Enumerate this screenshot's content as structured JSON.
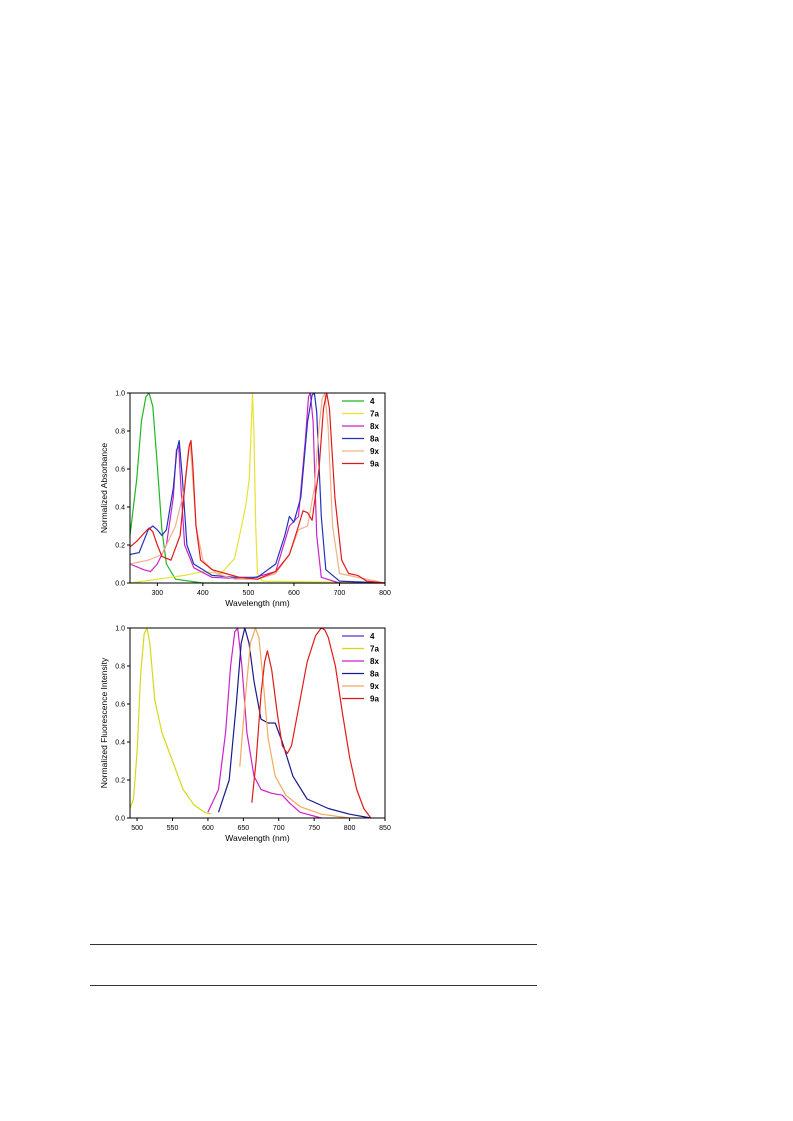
{
  "chart_data": [
    {
      "type": "line",
      "xlabel": "Wavelength (nm)",
      "ylabel": "Normalized Absorbance",
      "xlim": [
        240,
        800
      ],
      "ylim": [
        0,
        1.0
      ],
      "xticks": [
        300,
        400,
        500,
        600,
        700,
        800
      ],
      "yticks": [
        0.0,
        0.2,
        0.4,
        0.6,
        0.8,
        1.0
      ],
      "legend_position": "top-right",
      "series": [
        {
          "name": "4",
          "color": "#22b722",
          "x": [
            240,
            255,
            265,
            275,
            282,
            290,
            300,
            310,
            320,
            340,
            400,
            800
          ],
          "y": [
            0.25,
            0.55,
            0.85,
            0.98,
            1.0,
            0.93,
            0.62,
            0.28,
            0.1,
            0.02,
            0.0,
            0.0
          ]
        },
        {
          "name": "7a",
          "color": "#e8e233",
          "x": [
            240,
            300,
            360,
            400,
            440,
            470,
            485,
            495,
            502,
            506,
            509,
            512,
            516,
            520,
            530,
            800
          ],
          "y": [
            0.0,
            0.02,
            0.04,
            0.06,
            0.05,
            0.13,
            0.3,
            0.42,
            0.55,
            0.8,
            1.0,
            0.8,
            0.3,
            0.05,
            0.01,
            0.0
          ]
        },
        {
          "name": "8x",
          "color": "#cc22cc",
          "x": [
            240,
            270,
            285,
            300,
            320,
            335,
            342,
            347,
            352,
            360,
            380,
            420,
            500,
            560,
            590,
            610,
            625,
            632,
            636,
            642,
            650,
            660,
            700,
            800
          ],
          "y": [
            0.1,
            0.07,
            0.06,
            0.1,
            0.2,
            0.45,
            0.7,
            0.72,
            0.5,
            0.2,
            0.08,
            0.03,
            0.02,
            0.06,
            0.3,
            0.35,
            0.75,
            0.98,
            1.0,
            0.85,
            0.25,
            0.03,
            0.0,
            0.0
          ]
        },
        {
          "name": "8a",
          "color": "#2233bb",
          "x": [
            240,
            260,
            280,
            290,
            300,
            310,
            320,
            335,
            343,
            348,
            355,
            365,
            380,
            420,
            470,
            520,
            560,
            580,
            590,
            600,
            615,
            630,
            640,
            645,
            650,
            660,
            670,
            700,
            800
          ],
          "y": [
            0.15,
            0.16,
            0.28,
            0.3,
            0.28,
            0.25,
            0.28,
            0.5,
            0.7,
            0.75,
            0.55,
            0.2,
            0.1,
            0.04,
            0.03,
            0.03,
            0.1,
            0.25,
            0.35,
            0.32,
            0.45,
            0.85,
            0.99,
            1.0,
            0.9,
            0.35,
            0.07,
            0.01,
            0.0
          ]
        },
        {
          "name": "9x",
          "color": "#f2b08a",
          "x": [
            240,
            280,
            310,
            340,
            360,
            368,
            372,
            378,
            385,
            400,
            430,
            470,
            520,
            560,
            590,
            610,
            630,
            645,
            655,
            662,
            668,
            675,
            685,
            700,
            800
          ],
          "y": [
            0.1,
            0.12,
            0.15,
            0.3,
            0.5,
            0.7,
            0.74,
            0.55,
            0.3,
            0.12,
            0.05,
            0.02,
            0.02,
            0.05,
            0.15,
            0.28,
            0.3,
            0.5,
            0.82,
            0.97,
            1.0,
            0.82,
            0.3,
            0.05,
            0.0
          ]
        },
        {
          "name": "9a",
          "color": "#e01a1a",
          "x": [
            240,
            255,
            270,
            282,
            290,
            300,
            310,
            330,
            350,
            362,
            370,
            374,
            378,
            385,
            395,
            420,
            450,
            480,
            520,
            560,
            590,
            610,
            620,
            630,
            640,
            655,
            665,
            672,
            678,
            690,
            705,
            720,
            740,
            760,
            800
          ],
          "y": [
            0.19,
            0.22,
            0.26,
            0.29,
            0.27,
            0.2,
            0.14,
            0.12,
            0.25,
            0.55,
            0.72,
            0.75,
            0.62,
            0.3,
            0.12,
            0.07,
            0.05,
            0.03,
            0.02,
            0.06,
            0.15,
            0.3,
            0.38,
            0.37,
            0.33,
            0.6,
            0.92,
            1.0,
            0.92,
            0.45,
            0.12,
            0.05,
            0.04,
            0.01,
            0.0
          ]
        }
      ]
    },
    {
      "type": "line",
      "xlabel": "Wavelength (nm)",
      "ylabel": "Normalized Fluorescence Intensity",
      "xlim": [
        490,
        850
      ],
      "ylim": [
        0,
        1.0
      ],
      "xticks": [
        500,
        550,
        600,
        650,
        700,
        750,
        800,
        850
      ],
      "yticks": [
        0.0,
        0.2,
        0.4,
        0.6,
        0.8,
        1.0
      ],
      "legend_position": "top-right",
      "series": [
        {
          "name": "4",
          "color": "#5a2ed6",
          "x": [],
          "y": []
        },
        {
          "name": "7a",
          "color": "#d8d81a",
          "x": [
            490,
            495,
            500,
            505,
            510,
            514,
            518,
            525,
            535,
            550,
            565,
            580,
            595,
            605
          ],
          "y": [
            0.05,
            0.1,
            0.35,
            0.75,
            0.97,
            1.0,
            0.92,
            0.62,
            0.45,
            0.3,
            0.15,
            0.07,
            0.03,
            0.02
          ]
        },
        {
          "name": "8x",
          "color": "#cc22cc",
          "x": [
            600,
            615,
            625,
            632,
            638,
            642,
            648,
            655,
            665,
            675,
            690,
            705,
            715,
            730,
            760
          ],
          "y": [
            0.03,
            0.15,
            0.45,
            0.8,
            0.98,
            1.0,
            0.8,
            0.45,
            0.22,
            0.15,
            0.13,
            0.12,
            0.08,
            0.03,
            0.0
          ]
        },
        {
          "name": "8a",
          "color": "#1a1a8a",
          "x": [
            615,
            630,
            640,
            647,
            652,
            658,
            665,
            675,
            685,
            695,
            705,
            720,
            740,
            770,
            800,
            830
          ],
          "y": [
            0.03,
            0.2,
            0.6,
            0.92,
            1.0,
            0.92,
            0.72,
            0.52,
            0.5,
            0.5,
            0.4,
            0.22,
            0.1,
            0.05,
            0.02,
            0.0
          ]
        },
        {
          "name": "9x",
          "color": "#f4a85e",
          "x": [
            645,
            652,
            660,
            667,
            672,
            678,
            685,
            695,
            710,
            730,
            760,
            800
          ],
          "y": [
            0.27,
            0.6,
            0.92,
            1.0,
            0.95,
            0.72,
            0.42,
            0.22,
            0.12,
            0.06,
            0.02,
            0.0
          ]
        },
        {
          "name": "9a",
          "color": "#e01a1a",
          "x": [
            662,
            668,
            675,
            680,
            684,
            690,
            698,
            705,
            712,
            718,
            728,
            740,
            752,
            760,
            765,
            770,
            780,
            790,
            800,
            810,
            820,
            830
          ],
          "y": [
            0.08,
            0.3,
            0.65,
            0.82,
            0.88,
            0.78,
            0.55,
            0.38,
            0.34,
            0.38,
            0.58,
            0.82,
            0.96,
            1.0,
            0.99,
            0.95,
            0.8,
            0.55,
            0.32,
            0.15,
            0.05,
            0.0
          ]
        }
      ]
    }
  ]
}
